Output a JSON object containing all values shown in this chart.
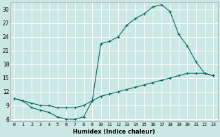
{
  "xlabel": "Humidex (Indice chaleur)",
  "bg_color": "#cce8e4",
  "line_color": "#006666",
  "grid_color": "#ffffff",
  "xlim": [
    -0.5,
    23.5
  ],
  "ylim": [
    5.5,
    31.5
  ],
  "yticks": [
    6,
    9,
    12,
    15,
    18,
    21,
    24,
    27,
    30
  ],
  "xticks": [
    0,
    1,
    2,
    3,
    4,
    5,
    6,
    7,
    8,
    9,
    10,
    11,
    12,
    13,
    14,
    15,
    16,
    17,
    18,
    19,
    20,
    21,
    22,
    23
  ],
  "curve1_x": [
    0,
    1,
    2,
    3,
    4,
    5,
    6,
    7,
    8,
    9,
    10,
    11,
    12,
    13,
    14,
    15,
    16,
    17,
    18
  ],
  "curve1_y": [
    10.5,
    10.0,
    8.5,
    8.0,
    7.5,
    6.5,
    6.0,
    6.0,
    6.5,
    10.0,
    22.5,
    23.0,
    24.0,
    26.5,
    28.0,
    29.0,
    30.5,
    31.0,
    29.5
  ],
  "curve2_x": [
    18,
    19,
    20,
    21,
    22,
    23
  ],
  "curve2_y": [
    29.5,
    24.5,
    22.0,
    18.5,
    16.0,
    15.5
  ],
  "curve3_x": [
    0,
    1,
    2,
    3,
    4,
    5,
    6,
    7,
    8,
    9,
    10,
    11,
    12,
    13,
    14,
    15,
    16,
    17,
    18,
    19,
    20,
    21,
    22,
    23
  ],
  "curve3_y": [
    10.5,
    10.0,
    9.5,
    9.0,
    9.0,
    8.5,
    8.5,
    8.5,
    9.0,
    10.0,
    11.0,
    11.5,
    12.0,
    12.5,
    13.0,
    13.5,
    14.0,
    14.5,
    15.0,
    15.5,
    16.0,
    16.0,
    16.0,
    15.5
  ]
}
